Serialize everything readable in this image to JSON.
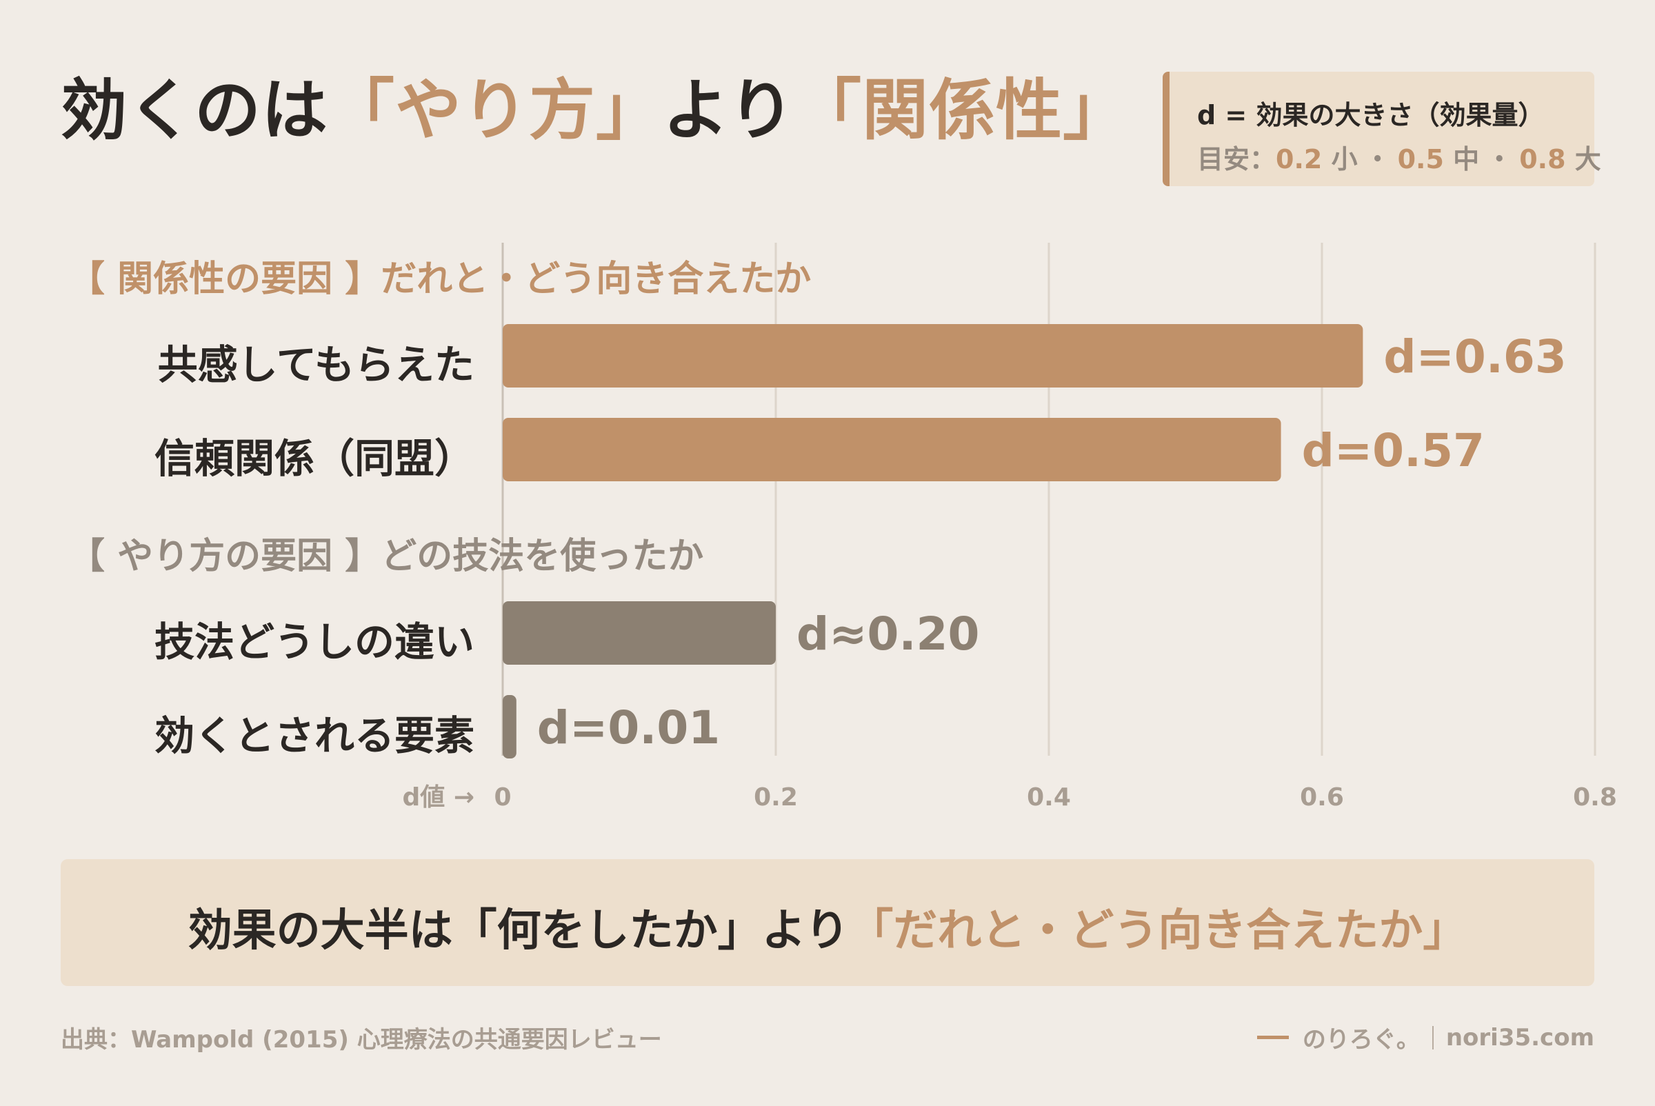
{
  "header": {
    "title_pre": "効くのは",
    "title_accent1": "「やり方」",
    "title_mid": "より",
    "title_accent2": "「関係性」"
  },
  "legend": {
    "title": "d = 効果の大きさ（効果量）",
    "scale_prefix": "目安：",
    "small_value": "0.2",
    "small_label": "小",
    "medium_value": "0.5",
    "medium_label": "中",
    "large_value": "0.8",
    "large_label": "大",
    "separator": "・"
  },
  "sections": {
    "relationship": "【 関係性の要因 】だれと・どう向き合えたか",
    "technique": "【 やり方の要因 】どの技法を使ったか"
  },
  "chart_data": {
    "type": "bar",
    "orientation": "horizontal",
    "categories": [
      "共感してもらえた",
      "信頼関係（同盟）",
      "技法どうしの違い",
      "効くとされる要素"
    ],
    "values": [
      0.63,
      0.57,
      0.2,
      0.01
    ],
    "data_labels": [
      "d=0.63",
      "d=0.57",
      "d≈0.20",
      "d=0.01"
    ],
    "groups": [
      "relationship",
      "relationship",
      "technique",
      "technique"
    ],
    "colors": {
      "relationship": "#c09169",
      "technique": "#8c8072"
    },
    "xlim": [
      0,
      0.8
    ],
    "xticks": [
      "0",
      "0.2",
      "0.4",
      "0.6",
      "0.8"
    ],
    "xlabel": "d値 →",
    "grid": true
  },
  "summary": {
    "text_pre": "効果の大半は「何をしたか」より",
    "text_accent": "「だれと・どう向き合えたか」"
  },
  "footer": {
    "source": "出典：Wampold (2015) 心理療法の共通要因レビュー",
    "brand_name": "のりろぐ。",
    "site": "nori35.com"
  }
}
